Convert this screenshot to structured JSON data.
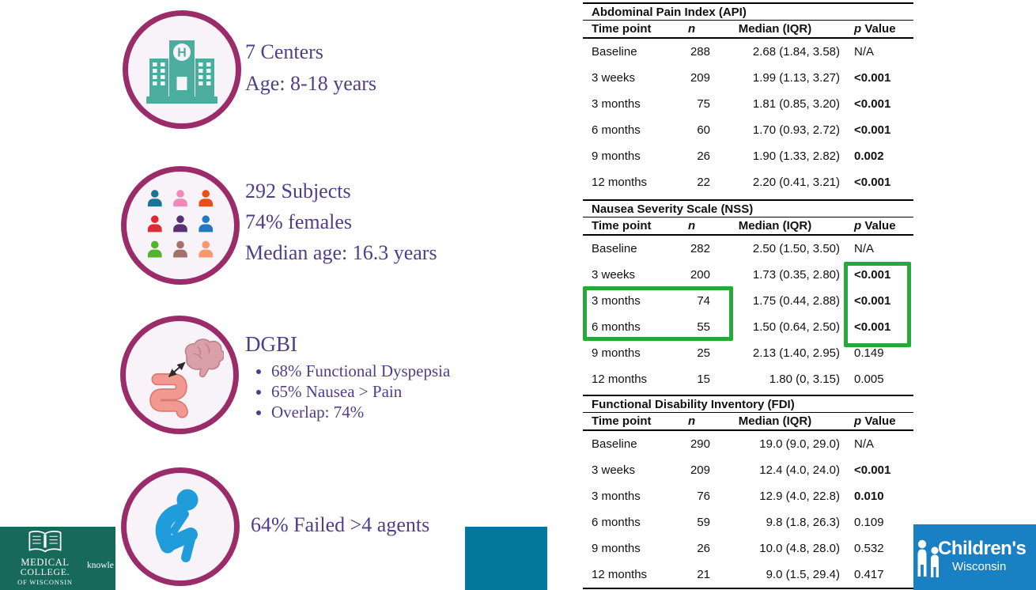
{
  "slide": {
    "infographic": {
      "items": [
        {
          "icon": "hospital-icon",
          "lines": [
            "7 Centers",
            "Age: 8-18 years"
          ]
        },
        {
          "icon": "people-grid-icon",
          "lines": [
            "292 Subjects",
            "74% females",
            "Median age: 16.3 years"
          ]
        },
        {
          "icon": "brain-gut-icon",
          "heading": "DGBI",
          "bullets": [
            "68% Functional Dyspepsia",
            "65% Nausea > Pain",
            "Overlap: 74%"
          ]
        },
        {
          "icon": "crouched-person-icon",
          "lines": [
            "64% Failed >4 agents"
          ]
        }
      ],
      "hospital_letter": "H",
      "text_color": "#4f3e8b",
      "circle_border_color": "#9a2c69",
      "circle_fill_color": "#f7f3f8",
      "hospital_icon_color": "#4aad9d",
      "person_grid_colors": [
        "#1d7296",
        "#ee8abb",
        "#e84e1b",
        "#dd2a33",
        "#5a3178",
        "#2179c0",
        "#53b32a",
        "#a4706b",
        "#f7986f"
      ],
      "crouched_person_color": "#1f9cd9"
    },
    "tables": [
      {
        "title": "Abdominal Pain Index (API)",
        "columns": [
          "Time point",
          "n",
          "Median (IQR)",
          "p Value"
        ],
        "rows": [
          {
            "time": "Baseline",
            "n": "288",
            "median": "2.68 (1.84, 3.58)",
            "p": "N/A",
            "p_bold": false
          },
          {
            "time": "3 weeks",
            "n": "209",
            "median": "1.99 (1.13, 3.27)",
            "p": "<0.001",
            "p_bold": true
          },
          {
            "time": "3 months",
            "n": "75",
            "median": "1.81 (0.85, 3.20)",
            "p": "<0.001",
            "p_bold": true
          },
          {
            "time": "6 months",
            "n": "60",
            "median": "1.70 (0.93, 2.72)",
            "p": "<0.001",
            "p_bold": true
          },
          {
            "time": "9 months",
            "n": "26",
            "median": "1.90 (1.33, 2.82)",
            "p": "0.002",
            "p_bold": true
          },
          {
            "time": "12 months",
            "n": "22",
            "median": "2.20 (0.41, 3.21)",
            "p": "<0.001",
            "p_bold": true
          }
        ]
      },
      {
        "title": "Nausea Severity Scale (NSS)",
        "columns": [
          "Time point",
          "n",
          "Median (IQR)",
          "p Value"
        ],
        "rows": [
          {
            "time": "Baseline",
            "n": "282",
            "median": "2.50 (1.50, 3.50)",
            "p": "N/A",
            "p_bold": false
          },
          {
            "time": "3 weeks",
            "n": "200",
            "median": "1.73 (0.35, 2.80)",
            "p": "<0.001",
            "p_bold": true
          },
          {
            "time": "3 months",
            "n": "74",
            "median": "1.75 (0.44, 2.88)",
            "p": "<0.001",
            "p_bold": true
          },
          {
            "time": "6 months",
            "n": "55",
            "median": "1.50 (0.64, 2.50)",
            "p": "<0.001",
            "p_bold": true
          },
          {
            "time": "9 months",
            "n": "25",
            "median": "2.13 (1.40, 2.95)",
            "p": "0.149",
            "p_bold": false
          },
          {
            "time": "12 months",
            "n": "15",
            "median": "1.80 (0, 3.15)",
            "p": "0.005",
            "p_bold": false
          }
        ]
      },
      {
        "title": "Functional Disability Inventory (FDI)",
        "columns": [
          "Time point",
          "n",
          "Median (IQR)",
          "p Value"
        ],
        "rows": [
          {
            "time": "Baseline",
            "n": "290",
            "median": "19.0 (9.0, 29.0)",
            "p": "N/A",
            "p_bold": false
          },
          {
            "time": "3 weeks",
            "n": "209",
            "median": "12.4 (4.0, 24.0)",
            "p": "<0.001",
            "p_bold": true
          },
          {
            "time": "3 months",
            "n": "76",
            "median": "12.9 (4.0, 22.8)",
            "p": "0.010",
            "p_bold": true
          },
          {
            "time": "6 months",
            "n": "59",
            "median": "9.8 (1.8, 26.3)",
            "p": "0.109",
            "p_bold": false
          },
          {
            "time": "9 months",
            "n": "26",
            "median": "10.0 (4.8, 28.0)",
            "p": "0.532",
            "p_bold": false
          },
          {
            "time": "12 months",
            "n": "21",
            "median": "9.0 (1.5, 29.4)",
            "p": "0.417",
            "p_bold": false
          }
        ]
      }
    ],
    "highlight": {
      "color": "#26a83c"
    },
    "footer": {
      "mcw": {
        "bg_color": "#17695c",
        "line1": "MEDICAL",
        "line2": "COLLEGE.",
        "line3": "OF WISCONSIN",
        "tagline_partial": "knowle"
      },
      "teal_bar_color": "#04789b",
      "childrens": {
        "bg_color": "#1a80c4",
        "name": "Children's",
        "region": "Wisconsin"
      }
    }
  }
}
